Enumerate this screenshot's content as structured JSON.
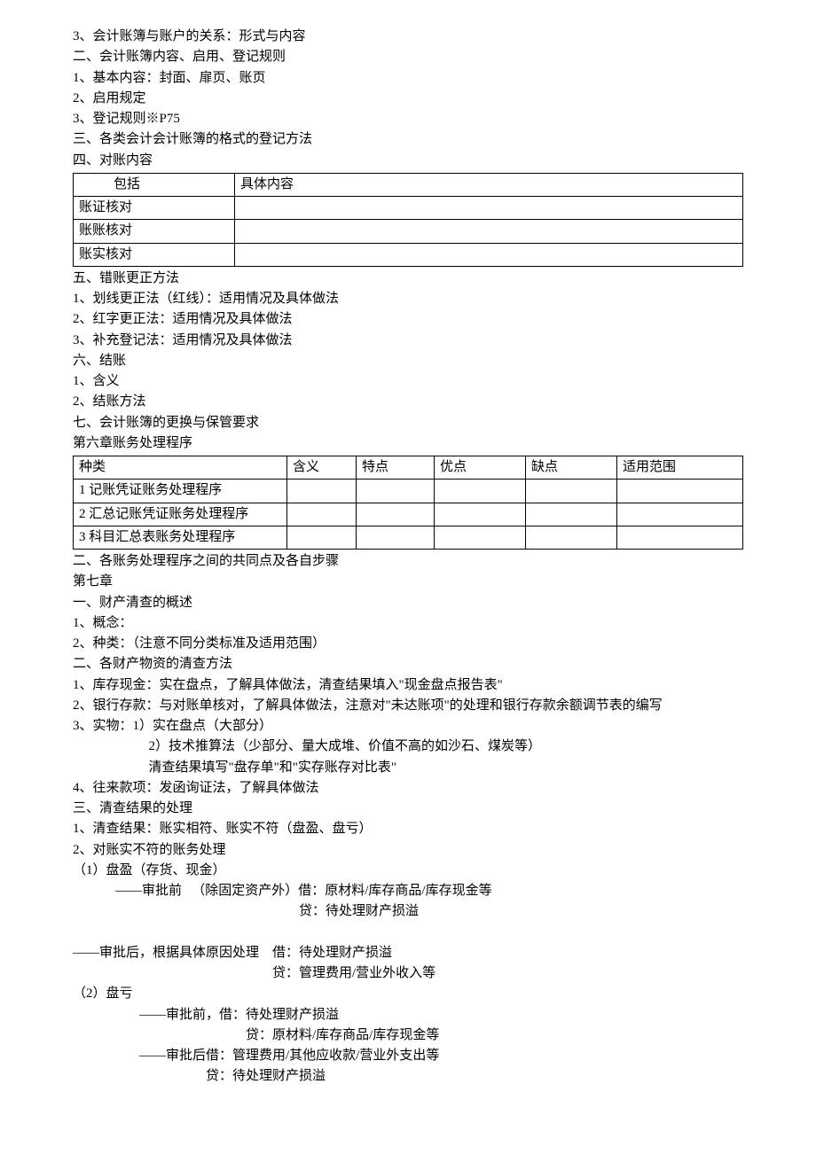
{
  "lines_a": [
    "3、会计账簿与账户的关系：形式与内容",
    "二、会计账簿内容、启用、登记规则",
    "1、基本内容：封面、扉页、账页",
    "2、启用规定",
    "3、登记规则※P75",
    "三、各类会计会计账簿的格式的登记方法",
    "四、对账内容"
  ],
  "table1": {
    "header": [
      "包括",
      "具体内容"
    ],
    "rows": [
      [
        "账证核对",
        ""
      ],
      [
        "账账核对",
        ""
      ],
      [
        "账实核对",
        ""
      ]
    ]
  },
  "lines_b": [
    "五、错账更正方法",
    "1、划线更正法（红线）：适用情况及具体做法",
    "2、红字更正法：适用情况及具体做法",
    "3、补充登记法：适用情况及具体做法",
    "六、结账",
    "1、含义",
    "2、结账方法",
    "七、会计账簿的更换与保管要求",
    "第六章账务处理程序"
  ],
  "table2": {
    "header": [
      "种类",
      "含义",
      "特点",
      "优点",
      "缺点",
      "适用范围"
    ],
    "rows": [
      [
        "1 记账凭证账务处理程序",
        "",
        "",
        "",
        "",
        ""
      ],
      [
        "2 汇总记账凭证账务处理程序",
        "",
        "",
        "",
        "",
        ""
      ],
      [
        "3 科目汇总表账务处理程序",
        "",
        "",
        "",
        "",
        ""
      ]
    ]
  },
  "lines_c": [
    "二、各账务处理程序之间的共同点及各自步骤",
    "第七章",
    "一、财产清查的概述",
    "1、概念：",
    "2、种类：（注意不同分类标准及适用范围）",
    "二、各财产物资的清查方法",
    "1、库存现金：实在盘点，了解具体做法，清查结果填入\"现金盘点报告表\"",
    "2、银行存款：与对账单核对，了解具体做法，注意对\"未达账项\"的处理和银行存款余额调节表的编写",
    "3、实物：1）实在盘点（大部分）"
  ],
  "line_c_sub1": "2）技术推算法（少部分、量大成堆、价值不高的如沙石、煤炭等）",
  "line_c_sub2": "清查结果填写\"盘存单\"和\"实存账存对比表\"",
  "lines_d": [
    "4、往来款项：发函询证法，了解具体做法",
    "三、清查结果的处理",
    "1、清查结果：账实相符、账实不符（盘盈、盘亏）",
    "2、对账实不符的账务处理",
    "（1）盘盈（存货、现金）"
  ],
  "line_e1": "——审批前   （除固定资产外）借：原材料/库存商品/库存现金等",
  "line_e2": "贷：待处理财产损溢",
  "line_f1": "——审批后，根据具体原因处理    借：待处理财产损溢",
  "line_f2": "贷：管理费用/营业外收入等",
  "line_g": "（2）盘亏",
  "line_h1": "——审批前，借：待处理财产损溢",
  "line_h2": "贷：原材料/库存商品/库存现金等",
  "line_i1": "——审批后借：管理费用/其他应收款/营业外支出等",
  "line_i2": "贷：待处理财产损溢"
}
